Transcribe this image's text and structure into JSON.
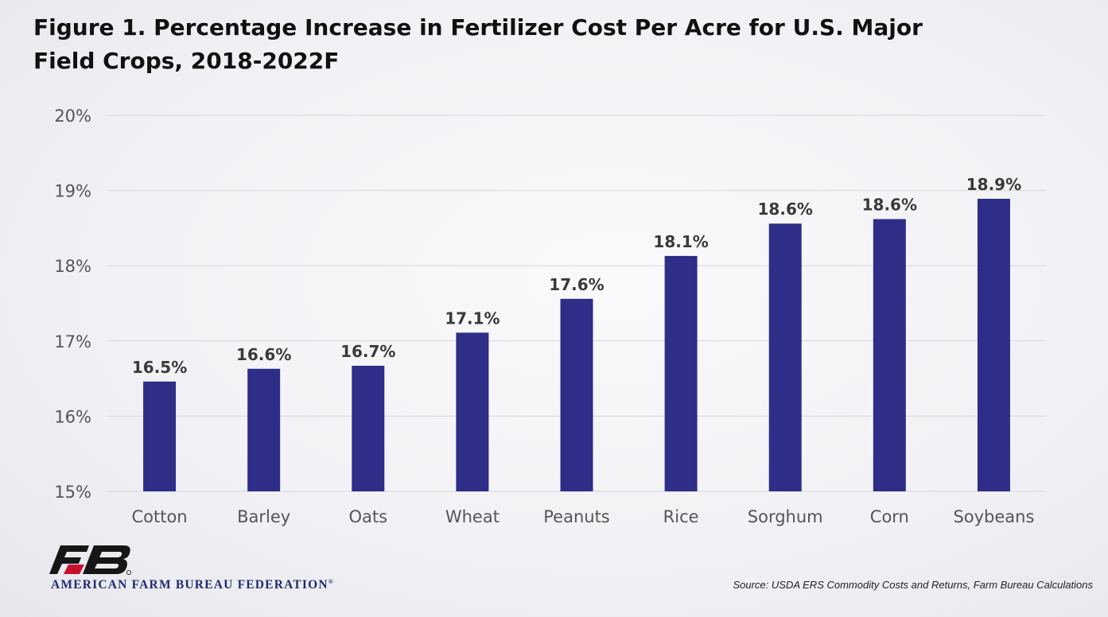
{
  "title": {
    "line1": "Figure 1. Percentage Increase in Fertilizer Cost Per Acre for U.S. Major",
    "line2": "Field Crops, 2018-2022F"
  },
  "source": "Source: USDA ERS Commodity Costs and Returns, Farm Bureau Calculations",
  "logo": {
    "text": "AMERICAN FARM BUREAU FEDERATION",
    "mark": "®",
    "icon": "fb-logo-icon"
  },
  "colors": {
    "bar": "#2e2d88",
    "grid": "#d6d6dc",
    "axis_text": "#555555",
    "label_text": "#3a3a3a",
    "logo_red": "#c8102e",
    "logo_black": "#161616"
  },
  "chart_data": {
    "type": "bar",
    "categories": [
      "Cotton",
      "Barley",
      "Oats",
      "Wheat",
      "Peanuts",
      "Rice",
      "Sorghum",
      "Corn",
      "Soybeans"
    ],
    "values": [
      16.46,
      16.63,
      16.67,
      17.11,
      17.56,
      18.13,
      18.56,
      18.62,
      18.89
    ],
    "data_labels": [
      "16.5%",
      "16.6%",
      "16.7%",
      "17.1%",
      "17.6%",
      "18.1%",
      "18.6%",
      "18.6%",
      "18.9%"
    ],
    "ylim": [
      15,
      20
    ],
    "yticks": [
      15,
      16,
      17,
      18,
      19,
      20
    ],
    "ytick_labels": [
      "15%",
      "16%",
      "17%",
      "18%",
      "19%",
      "20%"
    ],
    "grid": true,
    "xlabel": "",
    "ylabel": ""
  }
}
